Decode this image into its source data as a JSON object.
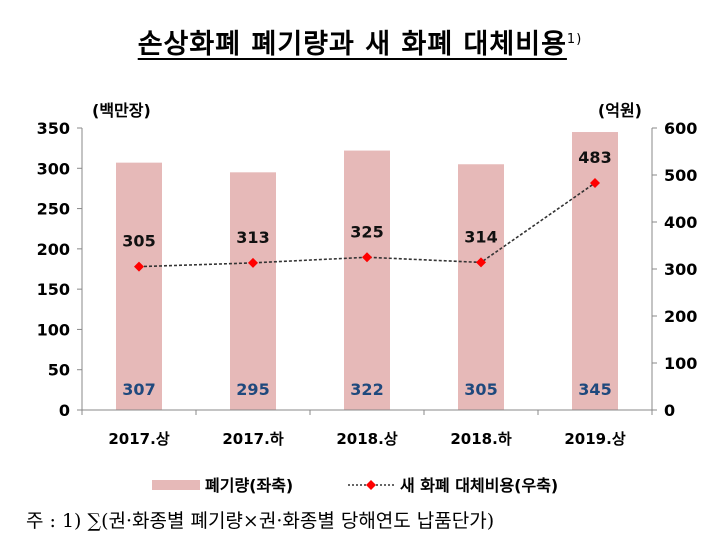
{
  "title": "손상화폐 폐기량과 새 화폐 대체비용",
  "title_footnote_mark": "1)",
  "footnote": "주 : 1)  ∑(권·화종별 폐기량×권·화종별 당해연도 납품단가)",
  "chart_data": {
    "type": "bar+line",
    "categories": [
      "2017.상",
      "2017.하",
      "2018.상",
      "2018.하",
      "2019.상"
    ],
    "y_left": {
      "label": "(백만장)",
      "range": [
        0,
        350
      ],
      "ticks": [
        0,
        50,
        100,
        150,
        200,
        250,
        300,
        350
      ]
    },
    "y_right": {
      "label": "(억원)",
      "range": [
        0,
        600
      ],
      "ticks": [
        0,
        100,
        200,
        300,
        400,
        500,
        600
      ]
    },
    "grid": false,
    "legend_placement": "bottom",
    "series": [
      {
        "name": "폐기량(좌축)",
        "type": "bar",
        "axis": "left",
        "color": "#e6b9b8",
        "label_color": "#1f497d",
        "values": [
          307,
          295,
          322,
          305,
          345
        ]
      },
      {
        "name": "새 화폐 대체비용(우축)",
        "type": "line",
        "axis": "right",
        "color": "#333333",
        "marker_color": "#ff0000",
        "values": [
          305,
          313,
          325,
          314,
          483
        ]
      }
    ]
  }
}
